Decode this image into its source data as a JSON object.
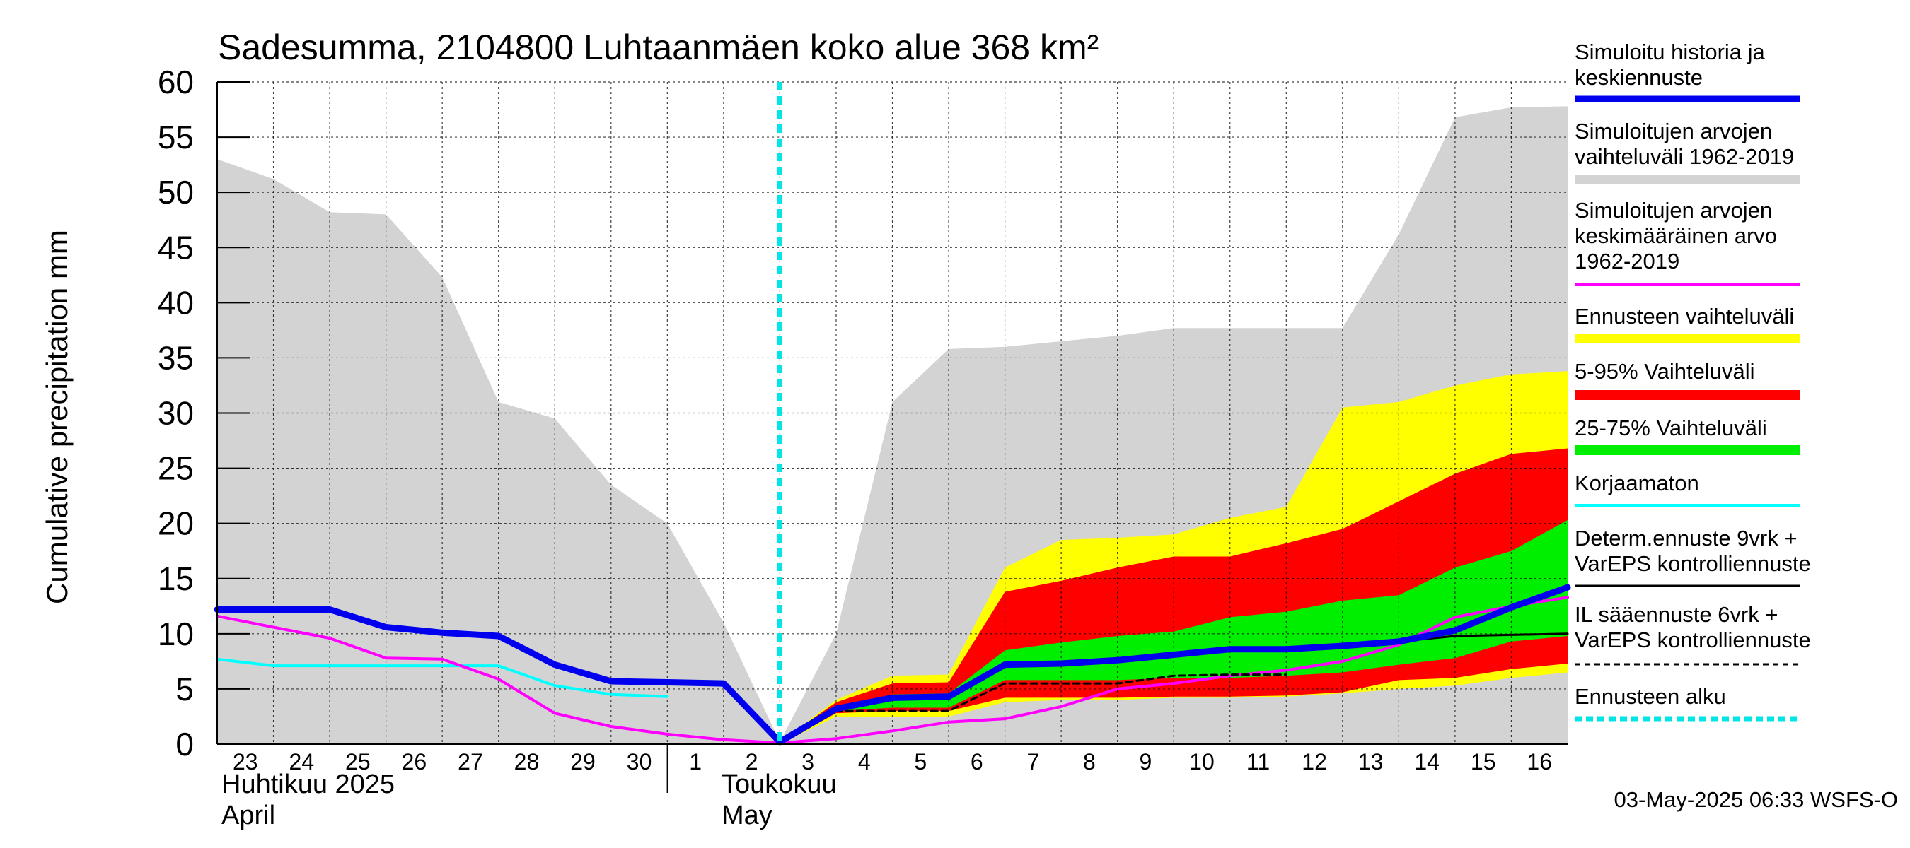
{
  "chart_data": {
    "type": "area",
    "title": "Sadesumma, 2104800 Luhtaanmäen koko alue 368 km²",
    "ylabel": "Cumulative precipitation    mm",
    "ylim": [
      0,
      60
    ],
    "yticks": [
      0,
      5,
      10,
      15,
      20,
      25,
      30,
      35,
      40,
      45,
      50,
      55,
      60
    ],
    "xlim": [
      23,
      47
    ],
    "day_labels": [
      "23",
      "24",
      "25",
      "26",
      "27",
      "28",
      "29",
      "30",
      "1",
      "2",
      "3",
      "4",
      "5",
      "6",
      "7",
      "8",
      "9",
      "10",
      "11",
      "12",
      "13",
      "14",
      "15",
      "16"
    ],
    "month_labels": [
      {
        "line1": "Huhtikuu  2025",
        "line2": "April"
      },
      {
        "line1": "Toukokuu",
        "line2": "May"
      }
    ],
    "forecast_start_x": 33,
    "footer": "03-May-2025 06:33 WSFS-O",
    "grid": true,
    "legend_placement": "right",
    "series": [
      {
        "key": "hist_range",
        "name": "Simuloitujen arvojen vaihteluväli 1962-2019",
        "color": "#d3d3d3",
        "x": [
          23,
          24,
          25,
          26,
          27,
          28,
          29,
          30,
          31,
          32,
          33,
          34,
          35,
          36,
          37,
          38,
          39,
          40,
          41,
          42,
          43,
          44,
          45,
          46,
          47
        ],
        "upper": [
          53,
          51.2,
          48.2,
          48,
          42.3,
          31,
          29.5,
          23.5,
          20,
          11,
          0.2,
          10,
          31,
          35.8,
          36,
          36.5,
          37,
          37.7,
          37.7,
          37.7,
          37.7,
          46.2,
          56.8,
          57.7,
          57.8
        ],
        "lower": [
          0,
          0,
          0,
          0,
          0,
          0,
          0,
          0,
          0,
          0,
          0,
          0,
          0,
          0,
          0,
          0,
          0,
          0,
          0,
          0,
          0,
          0,
          0,
          0,
          0
        ]
      },
      {
        "key": "ens_range",
        "name": "Ennusteen vaihteluväli",
        "color": "#ffff00",
        "x": [
          33,
          34,
          35,
          36,
          37,
          38,
          39,
          40,
          41,
          42,
          43,
          44,
          45,
          46,
          47
        ],
        "upper": [
          0.2,
          4,
          6.2,
          6.3,
          16,
          18.5,
          18.7,
          19,
          20.5,
          21.5,
          30.5,
          31,
          32.5,
          33.5,
          33.8
        ],
        "lower": [
          0,
          2.5,
          2.5,
          2.5,
          3.8,
          4,
          4,
          4.2,
          4.2,
          4.3,
          4.6,
          5,
          5.3,
          6,
          6.5
        ]
      },
      {
        "key": "p5_95",
        "name": "5-95% Vaihteluväli",
        "color": "#ff0000",
        "x": [
          33,
          34,
          35,
          36,
          37,
          38,
          39,
          40,
          41,
          42,
          43,
          44,
          45,
          46,
          47
        ],
        "upper": [
          0.2,
          3.8,
          5.5,
          5.6,
          13.8,
          14.8,
          16,
          17,
          17,
          18.2,
          19.5,
          22,
          24.5,
          26.3,
          26.8
        ],
        "lower": [
          0,
          2.8,
          3,
          3,
          4.2,
          4.2,
          4.2,
          4.3,
          4.3,
          4.4,
          4.7,
          5.8,
          6,
          6.8,
          7.3
        ]
      },
      {
        "key": "p25_75",
        "name": "25-75% Vaihteluväli",
        "color": "#00ee00",
        "x": [
          33,
          34,
          35,
          36,
          37,
          38,
          39,
          40,
          41,
          42,
          43,
          44,
          45,
          46,
          47
        ],
        "upper": [
          0.2,
          3.3,
          4.5,
          4.6,
          8.5,
          9.2,
          9.8,
          10.2,
          11.5,
          12,
          13,
          13.5,
          16,
          17.5,
          20.3
        ],
        "lower": [
          0,
          3,
          3.3,
          3.3,
          5.8,
          5.8,
          5.8,
          6,
          6,
          6.2,
          6.5,
          7.2,
          7.8,
          9.3,
          9.8
        ]
      },
      {
        "key": "sim_history",
        "name": "Simuloitu historia ja keskiennuste",
        "color": "#0000ee",
        "x": [
          23,
          24,
          25,
          26,
          27,
          28,
          29,
          30,
          31,
          32,
          33,
          34,
          35,
          36,
          37,
          38,
          39,
          40,
          41,
          42,
          43,
          44,
          45,
          46,
          47
        ],
        "y": [
          12.2,
          12.2,
          12.2,
          10.6,
          10.1,
          9.8,
          7.2,
          5.7,
          5.6,
          5.5,
          0.2,
          3.2,
          4.2,
          4.3,
          7.2,
          7.3,
          7.6,
          8.1,
          8.6,
          8.6,
          8.9,
          9.3,
          10.3,
          12.4,
          14.2
        ]
      },
      {
        "key": "sim_mean",
        "name": "Simuloitujen arvojen keskimääräinen arvo 1962-2019",
        "color": "#ff00ff",
        "x": [
          23,
          24,
          25,
          26,
          27,
          28,
          29,
          30,
          31,
          32,
          33,
          34,
          35,
          36,
          37,
          38,
          39,
          40,
          41,
          42,
          43,
          44,
          45,
          46,
          47
        ],
        "y": [
          11.6,
          10.6,
          9.6,
          7.8,
          7.7,
          5.9,
          2.8,
          1.6,
          0.9,
          0.4,
          0.1,
          0.5,
          1.2,
          2,
          2.3,
          3.4,
          5,
          5.5,
          6.2,
          6.7,
          7.5,
          9,
          11.5,
          12.5,
          13.3
        ]
      },
      {
        "key": "uncorrected",
        "name": "Korjaamaton",
        "color": "#00ffff",
        "x": [
          23,
          24,
          25,
          26,
          27,
          28,
          29,
          30,
          31
        ],
        "y": [
          7.7,
          7.1,
          7.1,
          7.1,
          7.1,
          7.1,
          5.3,
          4.5,
          4.3
        ]
      },
      {
        "key": "determ",
        "name": "Determ.ennuste 9vrk + VarEPS kontrolliennuste",
        "color": "#000000",
        "x": [
          33,
          34,
          35,
          36,
          37,
          38,
          39,
          40,
          41,
          42,
          43,
          44,
          45,
          46,
          47
        ],
        "y": [
          0.2,
          3.2,
          4.2,
          4.3,
          7.2,
          7.3,
          7.6,
          8.1,
          8.6,
          8.6,
          8.9,
          9.3,
          9.8,
          9.9,
          10
        ]
      },
      {
        "key": "il",
        "name": "IL sääennuste 6vrk  +    VarEPS kontrolliennuste",
        "color": "#000000",
        "x": [
          33,
          34,
          35,
          36,
          37,
          38,
          39,
          40,
          41,
          42
        ],
        "y": [
          0.2,
          3,
          3,
          3,
          5.5,
          5.5,
          5.5,
          6.2,
          6.3,
          6.3
        ]
      },
      {
        "key": "forecast_start",
        "name": "Ennusteen alku",
        "color": "#00e5e5"
      }
    ]
  }
}
